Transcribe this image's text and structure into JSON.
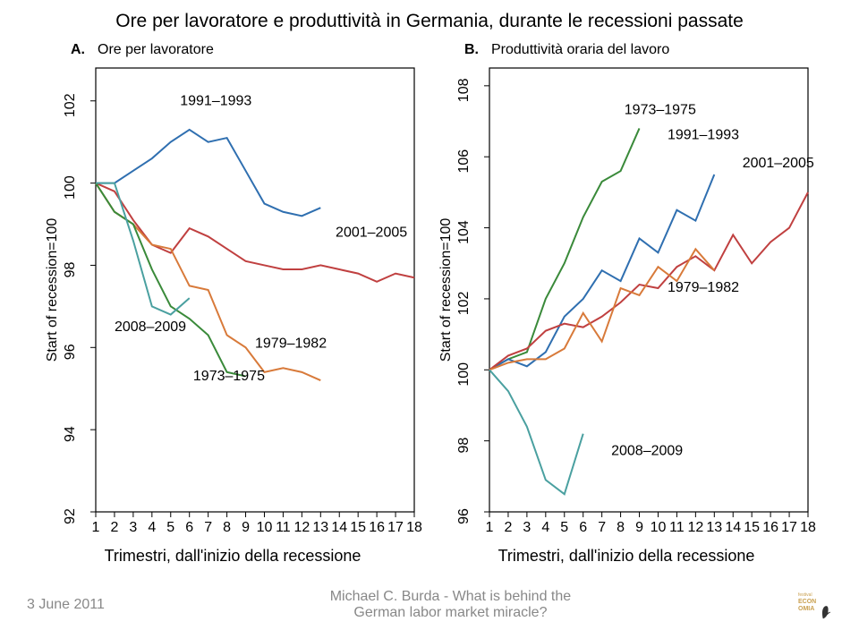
{
  "title": "Ore per lavoratore e produttività in Germania, durante le recessioni passate",
  "panelA": {
    "letter": "A.",
    "title": "Ore per lavoratore",
    "ylabel": "Start of recession=100",
    "xcaption": "Trimestri, dall'inizio della recessione",
    "ylim": [
      92,
      102.8
    ],
    "yticks": [
      92,
      94,
      96,
      98,
      100,
      102
    ],
    "xlim": [
      1,
      18
    ],
    "xticks": [
      1,
      2,
      3,
      4,
      5,
      6,
      7,
      8,
      9,
      10,
      11,
      12,
      13,
      14,
      15,
      16,
      17,
      18
    ],
    "series": [
      {
        "name": "1991-1993",
        "color": "#2f6fb0",
        "x": [
          1,
          2,
          3,
          4,
          5,
          6,
          7,
          8,
          9,
          10,
          11,
          12,
          13
        ],
        "y": [
          100,
          100,
          100.3,
          100.6,
          101.0,
          101.3,
          101.0,
          101.1,
          100.3,
          99.5,
          99.3,
          99.2,
          99.4
        ],
        "lx": 5.5,
        "ly": 101.9,
        "label": "1991–1993"
      },
      {
        "name": "2001-2005",
        "color": "#c04040",
        "x": [
          1,
          2,
          3,
          4,
          5,
          6,
          7,
          8,
          9,
          10,
          11,
          12,
          13,
          14,
          15,
          16,
          17,
          18
        ],
        "y": [
          100,
          99.8,
          99.1,
          98.5,
          98.3,
          98.9,
          98.7,
          98.4,
          98.1,
          98.0,
          97.9,
          97.9,
          98.0,
          97.9,
          97.8,
          97.6,
          97.8,
          97.7
        ],
        "lx": 13.8,
        "ly": 98.7,
        "label": "2001–2005"
      },
      {
        "name": "1979-1982",
        "color": "#d87a3a",
        "x": [
          1,
          2,
          3,
          4,
          5,
          6,
          7,
          8,
          9,
          10,
          11,
          12,
          13
        ],
        "y": [
          100,
          99.3,
          99.0,
          98.5,
          98.4,
          97.5,
          97.4,
          96.3,
          96.0,
          95.4,
          95.5,
          95.4,
          95.2
        ],
        "lx": 9.5,
        "ly": 96.0,
        "label": "1979–1982"
      },
      {
        "name": "1973-1975",
        "color": "#3a8a3a",
        "x": [
          1,
          2,
          3,
          4,
          5,
          6,
          7,
          8,
          9
        ],
        "y": [
          100,
          99.3,
          99.0,
          97.9,
          97.0,
          96.7,
          96.3,
          95.4,
          95.3
        ],
        "lx": 6.2,
        "ly": 95.2,
        "label": "1973–1975"
      },
      {
        "name": "2008-2009",
        "color": "#4aa0a0",
        "x": [
          1,
          2,
          3,
          4,
          5,
          6
        ],
        "y": [
          100,
          100.0,
          98.6,
          97.0,
          96.8,
          97.2
        ],
        "lx": 2.0,
        "ly": 96.4,
        "label": "2008–2009"
      }
    ]
  },
  "panelB": {
    "letter": "B.",
    "title": "Produttività oraria del lavoro",
    "ylabel": "Start of recession=100",
    "xcaption": "Trimestri, dall'inizio della recessione",
    "ylim": [
      96,
      108.5
    ],
    "yticks": [
      96,
      98,
      100,
      102,
      104,
      106,
      108
    ],
    "xlim": [
      1,
      18
    ],
    "xticks": [
      1,
      2,
      3,
      4,
      5,
      6,
      7,
      8,
      9,
      10,
      11,
      12,
      13,
      14,
      15,
      16,
      17,
      18
    ],
    "series": [
      {
        "name": "1973-1975",
        "color": "#3a8a3a",
        "x": [
          1,
          2,
          3,
          4,
          5,
          6,
          7,
          8,
          9
        ],
        "y": [
          100,
          100.3,
          100.5,
          102.0,
          103.0,
          104.3,
          105.3,
          105.6,
          106.8
        ],
        "lx": 8.2,
        "ly": 107.2,
        "label": "1973–1975"
      },
      {
        "name": "1991-1993",
        "color": "#2f6fb0",
        "x": [
          1,
          2,
          3,
          4,
          5,
          6,
          7,
          8,
          9,
          10,
          11,
          12,
          13
        ],
        "y": [
          100,
          100.3,
          100.1,
          100.5,
          101.5,
          102.0,
          102.8,
          102.5,
          103.7,
          103.3,
          104.5,
          104.2,
          105.5
        ],
        "lx": 10.5,
        "ly": 106.5,
        "label": "1991–1993"
      },
      {
        "name": "2001-2005",
        "color": "#c04040",
        "x": [
          1,
          2,
          3,
          4,
          5,
          6,
          7,
          8,
          9,
          10,
          11,
          12,
          13,
          14,
          15,
          16,
          17,
          18
        ],
        "y": [
          100,
          100.4,
          100.6,
          101.1,
          101.3,
          101.2,
          101.5,
          101.9,
          102.4,
          102.3,
          102.9,
          103.2,
          102.8,
          103.8,
          103.0,
          103.6,
          104.0,
          105.0
        ],
        "lx": 14.5,
        "ly": 105.7,
        "label": "2001–2005"
      },
      {
        "name": "1979-1982",
        "color": "#d87a3a",
        "x": [
          1,
          2,
          3,
          4,
          5,
          6,
          7,
          8,
          9,
          10,
          11,
          12,
          13
        ],
        "y": [
          100,
          100.2,
          100.3,
          100.3,
          100.6,
          101.6,
          100.8,
          102.3,
          102.1,
          102.9,
          102.5,
          103.4,
          102.8
        ],
        "lx": 10.5,
        "ly": 102.2,
        "label": "1979–1982"
      },
      {
        "name": "2008-2009",
        "color": "#4aa0a0",
        "x": [
          1,
          2,
          3,
          4,
          5,
          6
        ],
        "y": [
          100,
          99.4,
          98.4,
          96.9,
          96.5,
          98.2
        ],
        "lx": 7.5,
        "ly": 97.6,
        "label": "2008–2009"
      }
    ]
  },
  "footer": {
    "date": "3 June 2011",
    "credit1": "Michael C. Burda - What is behind the",
    "credit2": "German labor market miracle?"
  },
  "colors": {
    "logo_text": "#c9a050",
    "logo_shape": "#333"
  }
}
